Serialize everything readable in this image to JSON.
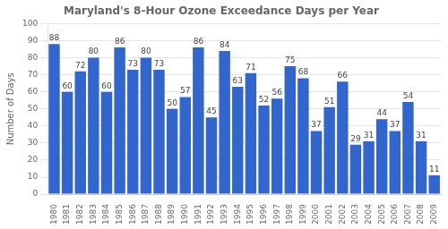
{
  "chart_data": {
    "type": "bar",
    "title": "Maryland's 8-Hour Ozone Exceedance Days per Year",
    "ylabel": "Number of Days",
    "categories": [
      "1980",
      "1981",
      "1982",
      "1983",
      "1984",
      "1985",
      "1986",
      "1987",
      "1988",
      "1989",
      "1990",
      "1991",
      "1992",
      "1993",
      "1994",
      "1995",
      "1996",
      "1997",
      "1998",
      "1999",
      "2000",
      "2001",
      "2002",
      "2003",
      "2004",
      "2005",
      "2006",
      "2007",
      "2008",
      "2009"
    ],
    "values": [
      88,
      60,
      72,
      80,
      60,
      86,
      73,
      80,
      73,
      50,
      57,
      86,
      45,
      84,
      63,
      71,
      52,
      56,
      75,
      68,
      37,
      51,
      66,
      29,
      31,
      44,
      37,
      54,
      31,
      11
    ],
    "color": "#3366CC",
    "ylim": [
      0,
      100
    ],
    "yticks": [
      0,
      10,
      20,
      30,
      40,
      50,
      60,
      70,
      80,
      90,
      100
    ],
    "grid": true,
    "data_labels": true
  }
}
